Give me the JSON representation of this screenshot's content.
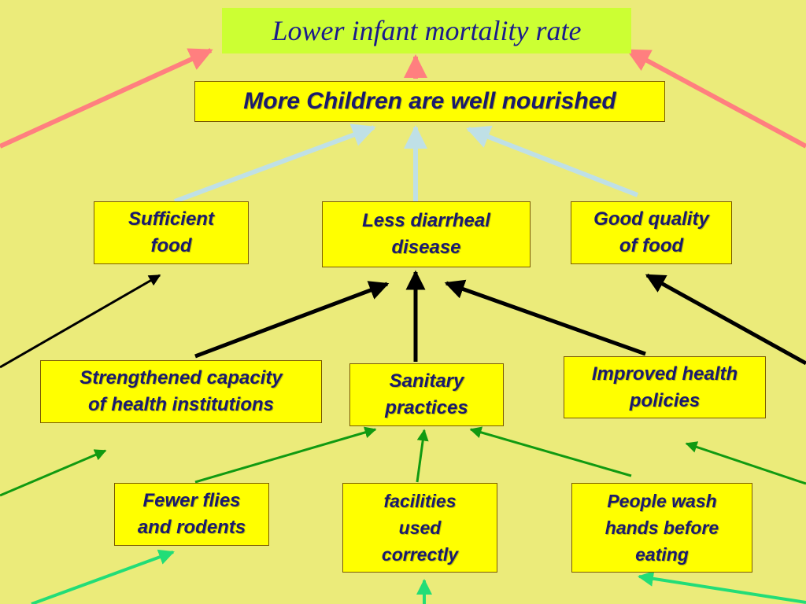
{
  "diagram": {
    "title": "Lower infant mortality rate",
    "level1": "More Children are well nourished",
    "level2": [
      "Sufficient\nfood",
      "Less diarrheal\ndisease",
      "Good quality\nof food"
    ],
    "level3": [
      "Strengthened capacity\nof health institutions",
      "Sanitary\npractices",
      "Improved  health\npolicies"
    ],
    "level4": [
      "Fewer flies\nand rodents",
      "facilities\nused\ncorrectly",
      "People wash\nhands before\neating"
    ]
  },
  "colors": {
    "background": "#ebeb7a",
    "box_fill": "#ffff00",
    "title_fill": "#ccff33",
    "text": "#1a1a6e",
    "arrow_pink": "#ff7f7f",
    "arrow_lightblue": "#bfe0e6",
    "arrow_black": "#000000",
    "arrow_green": "#119a11",
    "arrow_lightgreen": "#22dd77"
  }
}
